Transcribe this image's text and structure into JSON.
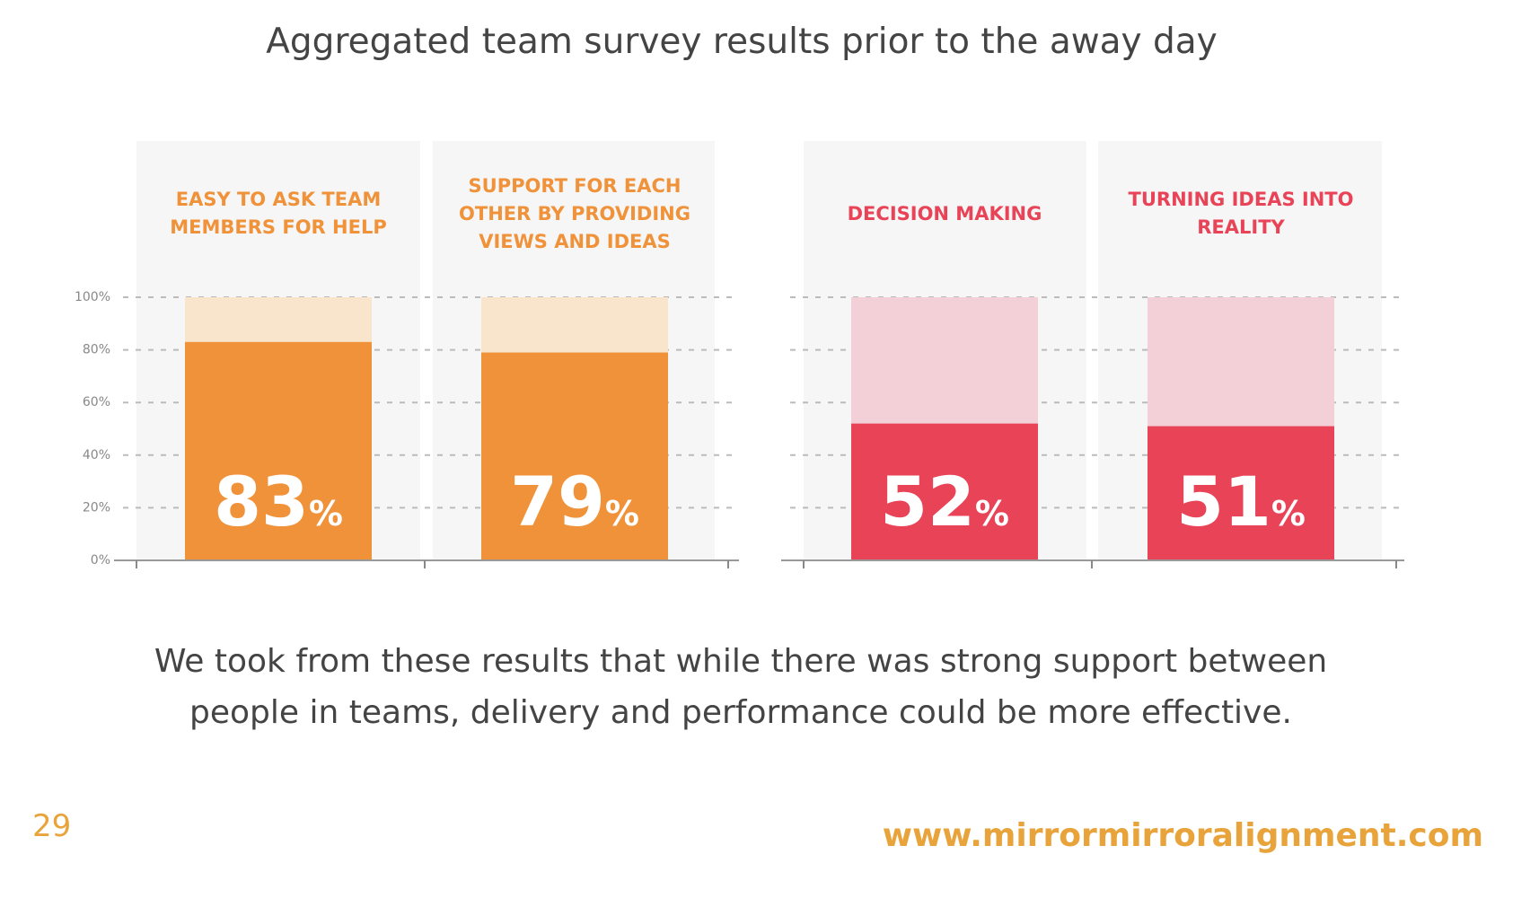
{
  "chart_data": {
    "type": "bar",
    "title": "Aggregated team survey results prior to the away day",
    "categories": [
      "EASY TO ASK TEAM MEMBERS FOR HELP",
      "SUPPORT FOR EACH OTHER BY PROVIDING VIEWS AND IDEAS",
      "DECISION MAKING",
      "TURNING IDEAS INTO REALITY"
    ],
    "values": [
      83,
      79,
      52,
      51
    ],
    "value_labels": [
      "83%",
      "79%",
      "52%",
      "51%"
    ],
    "colors": [
      "#f0923a",
      "#f0923a",
      "#e84357",
      "#e84357"
    ],
    "track_colors": [
      "#f8e5cb",
      "#f8e5cb",
      "#f3d0d8",
      "#f3d0d8"
    ],
    "ylim": [
      0,
      100
    ],
    "yticks": [
      {
        "value": 0,
        "label": "0%"
      },
      {
        "value": 20,
        "label": "20%"
      },
      {
        "value": 40,
        "label": "40%"
      },
      {
        "value": 60,
        "label": "60%"
      },
      {
        "value": 80,
        "label": "80%"
      },
      {
        "value": 100,
        "label": "100%"
      }
    ],
    "grid": true
  },
  "caption": "We took from these results that while there was strong support between people in teams, delivery and performance could be more effective.",
  "page_number": "29",
  "website": "www.mirrormirroralignment.com"
}
